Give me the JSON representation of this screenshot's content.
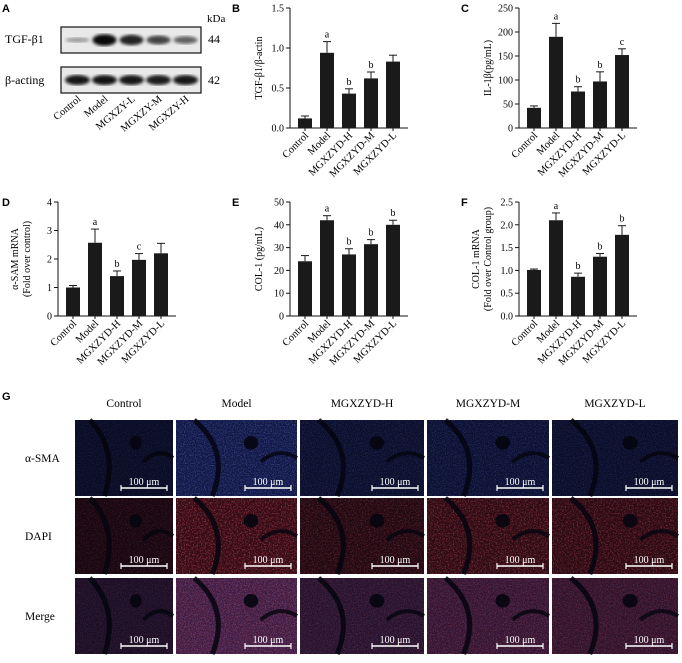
{
  "panel_letters": {
    "A": "A",
    "B": "B",
    "C": "C",
    "D": "D",
    "E": "E",
    "F": "F",
    "G": "G"
  },
  "blot": {
    "kda_label": "kDa",
    "rows": [
      {
        "name": "TGF-β1",
        "kda": "44"
      },
      {
        "name": "β-acting",
        "kda": "42"
      }
    ],
    "lanes": [
      "Control",
      "Model",
      "MGXZY-L",
      "MGXZY-M",
      "MGXZY-H"
    ],
    "tgf_intensity": [
      0.12,
      0.95,
      0.8,
      0.62,
      0.45
    ],
    "actin_intensity": [
      0.9,
      0.92,
      0.9,
      0.88,
      0.9
    ]
  },
  "chart_data": [
    {
      "id": "B",
      "type": "bar",
      "categories": [
        "Control",
        "Model",
        "MGXZYD-H",
        "MGXZYD-M",
        "MGXZYD-L"
      ],
      "values": [
        0.12,
        0.94,
        0.43,
        0.62,
        0.83
      ],
      "errors": [
        0.03,
        0.14,
        0.06,
        0.08,
        0.08
      ],
      "sig": [
        "",
        "a",
        "b",
        "b",
        ""
      ],
      "ylabel": "TGF-β1/β-actin",
      "ylim": [
        0,
        1.5
      ],
      "yticks": [
        "0.0",
        "0.5",
        "1.0",
        "1.5"
      ],
      "ytick_values": [
        0,
        0.5,
        1.0,
        1.5
      ]
    },
    {
      "id": "C",
      "type": "bar",
      "categories": [
        "Control",
        "Model",
        "MGXZYD-H",
        "MGXZYD-M",
        "MGXZYD-L"
      ],
      "values": [
        42,
        190,
        76,
        97,
        152
      ],
      "errors": [
        4,
        28,
        10,
        20,
        13
      ],
      "sig": [
        "",
        "a",
        "b",
        "b",
        "c"
      ],
      "ylabel": "IL-1β(pg/mL)",
      "ylim": [
        0,
        250
      ],
      "yticks": [
        "0",
        "50",
        "100",
        "150",
        "200",
        "250"
      ],
      "ytick_values": [
        0,
        50,
        100,
        150,
        200,
        250
      ]
    },
    {
      "id": "D",
      "type": "bar",
      "categories": [
        "Control",
        "Model",
        "MGXZYD-H",
        "MGXZYD-M",
        "MGXZYD-L"
      ],
      "values": [
        1.0,
        2.57,
        1.4,
        1.97,
        2.2
      ],
      "errors": [
        0.07,
        0.48,
        0.18,
        0.22,
        0.35
      ],
      "sig": [
        "",
        "a",
        "b",
        "c",
        ""
      ],
      "ylabel": "α-SAM mRNA (Fold over control)",
      "ylabel_lines": [
        "α-SAM mRNA",
        "(Fold over control)"
      ],
      "ylim": [
        0,
        4
      ],
      "yticks": [
        "0",
        "1",
        "2",
        "3",
        "4"
      ],
      "ytick_values": [
        0,
        1,
        2,
        3,
        4
      ]
    },
    {
      "id": "E",
      "type": "bar",
      "categories": [
        "Control",
        "Model",
        "MGXZYD-H",
        "MGXZYD-M",
        "MGXZYD-L"
      ],
      "values": [
        24,
        42,
        27,
        31.5,
        40
      ],
      "errors": [
        2.5,
        2,
        2.5,
        2,
        2
      ],
      "sig": [
        "",
        "a",
        "b",
        "b",
        "b"
      ],
      "ylabel": "COL-1 (pg/mL)",
      "ylim": [
        0,
        50
      ],
      "yticks": [
        "0",
        "10",
        "20",
        "30",
        "40",
        "50"
      ],
      "ytick_values": [
        0,
        10,
        20,
        30,
        40,
        50
      ]
    },
    {
      "id": "F",
      "type": "bar",
      "categories": [
        "Control",
        "Model",
        "MGXZYD-H",
        "MGXZYD-M",
        "MGXZYD-L"
      ],
      "values": [
        1.01,
        2.1,
        0.86,
        1.3,
        1.78
      ],
      "errors": [
        0.02,
        0.16,
        0.08,
        0.07,
        0.2
      ],
      "sig": [
        "",
        "a",
        "b",
        "b",
        "b"
      ],
      "ylabel": "COL-1 mRNA (Fold over Control group)",
      "ylabel_lines": [
        "COL-1 mRNA",
        "(Fold over Control group)"
      ],
      "ylim": [
        0,
        2.5
      ],
      "yticks": [
        "0.0",
        "0.5",
        "1.0",
        "1.5",
        "2.0",
        "2.5"
      ],
      "ytick_values": [
        0,
        0.5,
        1.0,
        1.5,
        2.0,
        2.5
      ]
    }
  ],
  "micro": {
    "columns": [
      "Control",
      "Model",
      "MGXZYD-H",
      "MGXZYD-M",
      "MGXZYD-L"
    ],
    "rows": [
      "α-SMA",
      "DAPI",
      "Merge"
    ],
    "scale_label": "100 μm",
    "colors": {
      "blue": "#2b3fb0",
      "red": "#c8222a",
      "dark": "#05050f"
    }
  }
}
